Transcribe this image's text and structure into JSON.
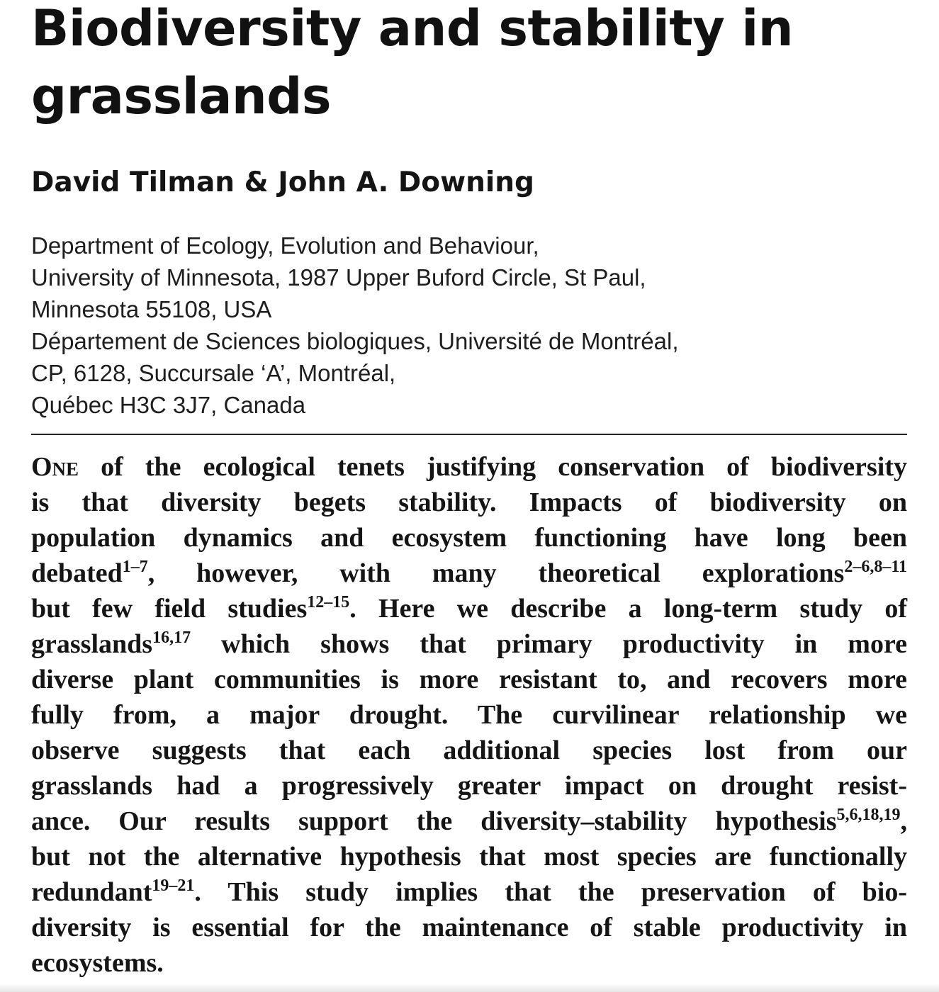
{
  "article": {
    "title_line1": "Biodiversity and stability in",
    "title_line2": "grasslands",
    "authors": "David Tilman & John A. Downing",
    "affiliations": [
      "Department of Ecology, Evolution and Behaviour,",
      "University of Minnesota, 1987 Upper Buford Circle, St Paul,",
      "Minnesota 55108, USA",
      "Département de Sciences biologiques, Université de Montréal,",
      "CP, 6128, Succursale ‘A’, Montréal,",
      "Québec H3C 3J7, Canada"
    ]
  },
  "abstract": {
    "l1_cap": "One",
    "l1_rest": " of the ecological tenets justifying conservation of biodiversity",
    "l2": "is that diversity begets stability. Impacts of biodiversity on",
    "l3": "population dynamics and ecosystem functioning have long been",
    "l4_a": "debated",
    "l4_ref1": "1–7",
    "l4_b": ", however, with many theoretical explorations",
    "l4_ref2": "2–6,8–11",
    "l5_a": "but few field studies",
    "l5_ref": "12–15",
    "l5_b": ". Here we describe a long-term study of",
    "l6_a": "grasslands",
    "l6_ref": "16,17",
    "l6_b": " which shows that primary productivity in more",
    "l7": "diverse plant communities is more resistant to, and recovers more",
    "l8": "fully from, a major drought. The curvilinear relationship we",
    "l9": "observe suggests that each additional species lost from our",
    "l10": "grasslands had a progressively greater impact on drought resist-",
    "l11_a": "ance. Our results support the diversity–stability hypothesis",
    "l11_ref": "5,6,18,19",
    "l11_b": ",",
    "l12": "but not the alternative hypothesis that most species are functionally",
    "l13_a": "redundant",
    "l13_ref": "19–21",
    "l13_b": ". This study implies that the preservation of bio-",
    "l14": "diversity is essential for the maintenance of stable productivity in",
    "l15": "ecosystems."
  }
}
